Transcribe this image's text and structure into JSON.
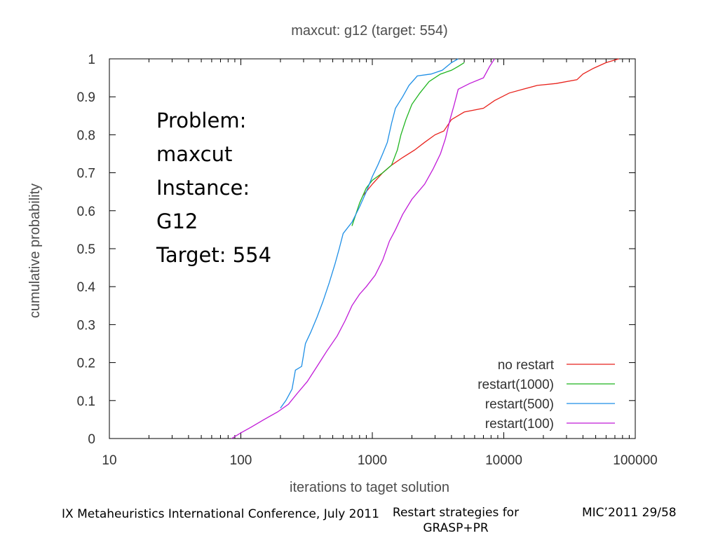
{
  "chart_data": {
    "type": "line",
    "title": "maxcut: g12 (target: 554)",
    "xlabel": "iterations to taget solution",
    "ylabel": "cumulative probability",
    "xscale": "log",
    "xlim": [
      10,
      100000
    ],
    "ylim": [
      0,
      1
    ],
    "x_ticks": [
      "10",
      "100",
      "1000",
      "10000",
      "100000"
    ],
    "y_ticks": [
      "0",
      "0.1",
      "0.2",
      "0.3",
      "0.4",
      "0.5",
      "0.6",
      "0.7",
      "0.8",
      "0.9",
      "1"
    ],
    "grid": false,
    "legend_position": "bottom-right",
    "annotation": [
      "Problem:",
      "maxcut",
      "Instance:",
      "G12",
      "Target: 554"
    ],
    "series": [
      {
        "name": "no restart",
        "color": "#e8221c",
        "points": [
          [
            850,
            0.64
          ],
          [
            1000,
            0.67
          ],
          [
            1200,
            0.7
          ],
          [
            1400,
            0.72
          ],
          [
            1700,
            0.74
          ],
          [
            2100,
            0.76
          ],
          [
            2500,
            0.78
          ],
          [
            3000,
            0.8
          ],
          [
            3500,
            0.81
          ],
          [
            4000,
            0.84
          ],
          [
            5000,
            0.86
          ],
          [
            7000,
            0.87
          ],
          [
            8500,
            0.89
          ],
          [
            11000,
            0.91
          ],
          [
            14000,
            0.92
          ],
          [
            18000,
            0.93
          ],
          [
            25000,
            0.935
          ],
          [
            36000,
            0.945
          ],
          [
            40000,
            0.96
          ],
          [
            48000,
            0.975
          ],
          [
            60000,
            0.99
          ],
          [
            75000,
            1.0
          ]
        ]
      },
      {
        "name": "restart(1000)",
        "color": "#1fb51f",
        "points": [
          [
            700,
            0.56
          ],
          [
            800,
            0.62
          ],
          [
            900,
            0.66
          ],
          [
            1000,
            0.68
          ],
          [
            1200,
            0.7
          ],
          [
            1400,
            0.72
          ],
          [
            1550,
            0.76
          ],
          [
            1650,
            0.8
          ],
          [
            1800,
            0.84
          ],
          [
            2000,
            0.88
          ],
          [
            2300,
            0.91
          ],
          [
            2700,
            0.94
          ],
          [
            3300,
            0.96
          ],
          [
            4000,
            0.97
          ],
          [
            4500,
            0.98
          ],
          [
            5000,
            0.99
          ]
        ]
      },
      {
        "name": "restart(500)",
        "color": "#1e8fe6",
        "points": [
          [
            200,
            0.08
          ],
          [
            220,
            0.1
          ],
          [
            245,
            0.13
          ],
          [
            260,
            0.18
          ],
          [
            290,
            0.19
          ],
          [
            310,
            0.25
          ],
          [
            340,
            0.28
          ],
          [
            380,
            0.32
          ],
          [
            420,
            0.36
          ],
          [
            470,
            0.41
          ],
          [
            520,
            0.46
          ],
          [
            560,
            0.5
          ],
          [
            600,
            0.54
          ],
          [
            700,
            0.57
          ],
          [
            800,
            0.61
          ],
          [
            900,
            0.65
          ],
          [
            1000,
            0.69
          ],
          [
            1100,
            0.72
          ],
          [
            1200,
            0.75
          ],
          [
            1300,
            0.78
          ],
          [
            1400,
            0.83
          ],
          [
            1500,
            0.87
          ],
          [
            1700,
            0.9
          ],
          [
            1900,
            0.93
          ],
          [
            2200,
            0.955
          ],
          [
            2800,
            0.96
          ],
          [
            3400,
            0.97
          ],
          [
            4000,
            0.99
          ],
          [
            4500,
            1.0
          ]
        ]
      },
      {
        "name": "restart(100)",
        "color": "#c11bd8",
        "points": [
          [
            85,
            0.0
          ],
          [
            100,
            0.015
          ],
          [
            120,
            0.03
          ],
          [
            150,
            0.05
          ],
          [
            190,
            0.07
          ],
          [
            230,
            0.09
          ],
          [
            270,
            0.12
          ],
          [
            320,
            0.15
          ],
          [
            380,
            0.19
          ],
          [
            450,
            0.23
          ],
          [
            540,
            0.27
          ],
          [
            620,
            0.31
          ],
          [
            700,
            0.35
          ],
          [
            800,
            0.38
          ],
          [
            900,
            0.4
          ],
          [
            1050,
            0.43
          ],
          [
            1200,
            0.47
          ],
          [
            1350,
            0.52
          ],
          [
            1500,
            0.55
          ],
          [
            1700,
            0.59
          ],
          [
            2000,
            0.63
          ],
          [
            2500,
            0.67
          ],
          [
            2900,
            0.71
          ],
          [
            3300,
            0.75
          ],
          [
            3600,
            0.79
          ],
          [
            3900,
            0.84
          ],
          [
            4200,
            0.88
          ],
          [
            4500,
            0.92
          ],
          [
            5500,
            0.935
          ],
          [
            7000,
            0.95
          ],
          [
            7800,
            0.98
          ],
          [
            8500,
            1.0
          ]
        ]
      }
    ]
  },
  "footer": {
    "left": "IX Metaheuristics International Conference, July 2011",
    "center_line1": "Restart strategies for",
    "center_line2": "GRASP+PR",
    "right": "MIC’2011 29/58"
  }
}
